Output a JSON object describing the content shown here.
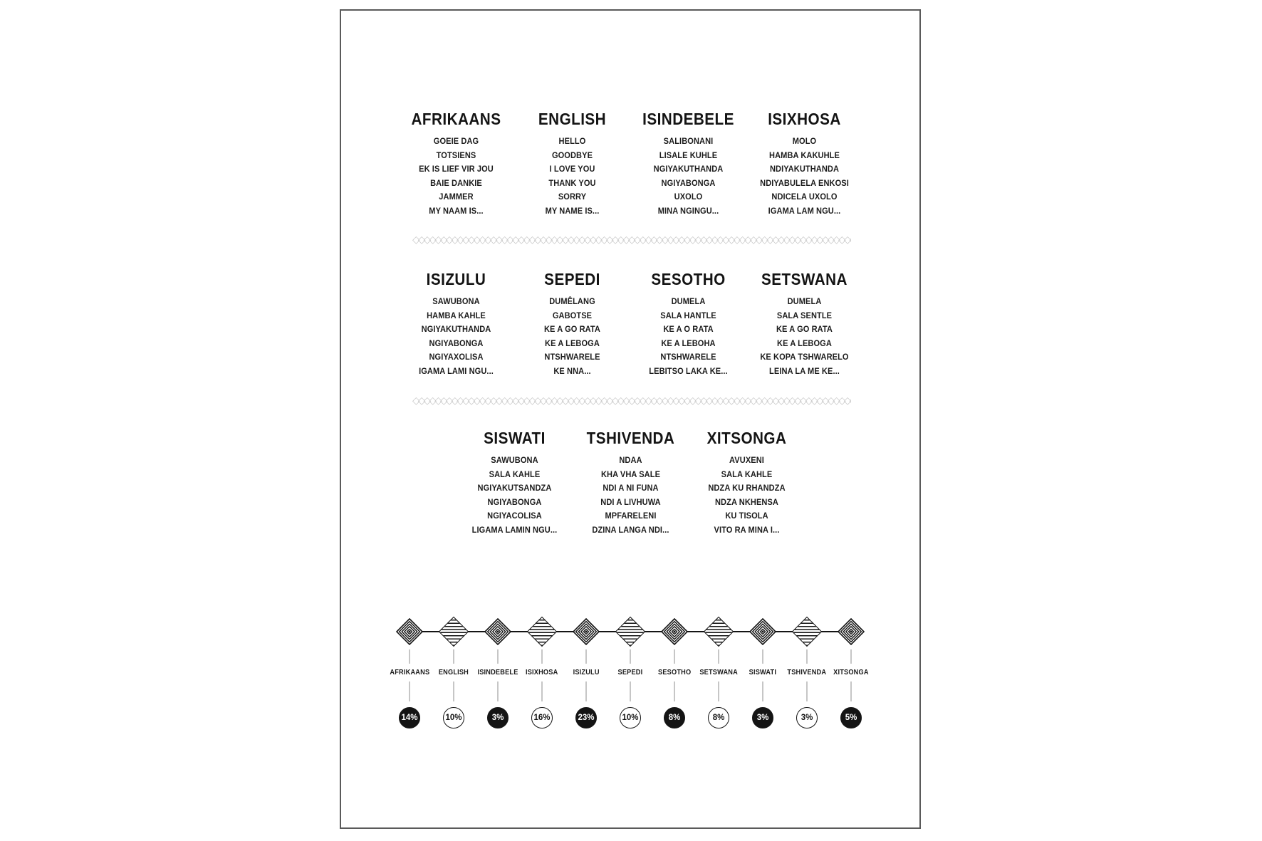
{
  "poster": {
    "divider_glyph": "◇",
    "divider_repeat": 130,
    "colors": {
      "ink": "#141414",
      "connector_gray": "#c6c6c6",
      "divider_gray": "#c9c9c9",
      "border_gray": "#5a5a5a"
    },
    "sections": [
      {
        "columns": [
          {
            "name": "AFRIKAANS",
            "phrases": [
              "GOEIE DAG",
              "TOTSIENS",
              "EK IS LIEF VIR JOU",
              "BAIE DANKIE",
              "JAMMER",
              "MY NAAM IS..."
            ]
          },
          {
            "name": "ENGLISH",
            "phrases": [
              "HELLO",
              "GOODBYE",
              "I LOVE YOU",
              "THANK YOU",
              "SORRY",
              "MY NAME IS..."
            ]
          },
          {
            "name": "ISINDEBELE",
            "phrases": [
              "SALIBONANI",
              "LISALE KUHLE",
              "NGIYAKUTHANDA",
              "NGIYABONGA",
              "UXOLO",
              "MINA NGINGU..."
            ]
          },
          {
            "name": "ISIXHOSA",
            "phrases": [
              "MOLO",
              "HAMBA KAKUHLE",
              "NDIYAKUTHANDA",
              "NDIYABULELA ENKOSI",
              "NDICELA UXOLO",
              "IGAMA LAM NGU..."
            ]
          }
        ]
      },
      {
        "columns": [
          {
            "name": "ISIZULU",
            "phrases": [
              "SAWUBONA",
              "HAMBA KAHLE",
              "NGIYAKUTHANDA",
              "NGIYABONGA",
              "NGIYAXOLISA",
              "IGAMA LAMI NGU..."
            ]
          },
          {
            "name": "SEPEDI",
            "phrases": [
              "DUMÊLANG",
              "GABOTSE",
              "KE A GO RATA",
              "KE A LEBOGA",
              "NTSHWARELE",
              "KE NNA..."
            ]
          },
          {
            "name": "SESOTHO",
            "phrases": [
              "DUMELA",
              "SALA HANTLE",
              "KE A O RATA",
              "KE A LEBOHA",
              "NTSHWARELE",
              "LEBITSO LAKA KE..."
            ]
          },
          {
            "name": "SETSWANA",
            "phrases": [
              "DUMELA",
              "SALA SENTLE",
              "KE A GO RATA",
              "KE A LEBOGA",
              "KE KOPA TSHWARELO",
              "LEINA LA ME KE..."
            ]
          }
        ]
      },
      {
        "columns": [
          {
            "name": "SISWATI",
            "phrases": [
              "SAWUBONA",
              "SALA KAHLE",
              "NGIYAKUTSANDZA",
              "NGIYABONGA",
              "NGIYACOLISA",
              "LIGAMA LAMIN NGU..."
            ]
          },
          {
            "name": "TSHIVENDA",
            "phrases": [
              "NDAA",
              "KHA VHA SALE",
              "NDI A NI FUNA",
              "NDI A LIVHUWA",
              "MPFARELENI",
              "DZINA LANGA NDI..."
            ]
          },
          {
            "name": "XITSONGA",
            "phrases": [
              "AVUXENI",
              "SALA KAHLE",
              "NDZA KU RHANDZA",
              "NDZA NKHENSA",
              "KU TISOLA",
              "VITO RA MINA I..."
            ]
          }
        ]
      }
    ],
    "timeline": {
      "items": [
        {
          "label": "AFRIKAANS",
          "value": "14%",
          "filled": true,
          "diamond": "concentric"
        },
        {
          "label": "ENGLISH",
          "value": "10%",
          "filled": false,
          "diamond": "striped"
        },
        {
          "label": "ISINDEBELE",
          "value": "3%",
          "filled": true,
          "diamond": "concentric"
        },
        {
          "label": "ISIXHOSA",
          "value": "16%",
          "filled": false,
          "diamond": "striped"
        },
        {
          "label": "ISIZULU",
          "value": "23%",
          "filled": true,
          "diamond": "concentric"
        },
        {
          "label": "SEPEDI",
          "value": "10%",
          "filled": false,
          "diamond": "striped"
        },
        {
          "label": "SESOTHO",
          "value": "8%",
          "filled": true,
          "diamond": "concentric"
        },
        {
          "label": "SETSWANA",
          "value": "8%",
          "filled": false,
          "diamond": "striped"
        },
        {
          "label": "SISWATI",
          "value": "3%",
          "filled": true,
          "diamond": "concentric"
        },
        {
          "label": "TSHIVENDA",
          "value": "3%",
          "filled": false,
          "diamond": "striped"
        },
        {
          "label": "XITSONGA",
          "value": "5%",
          "filled": true,
          "diamond": "concentric"
        }
      ]
    }
  }
}
